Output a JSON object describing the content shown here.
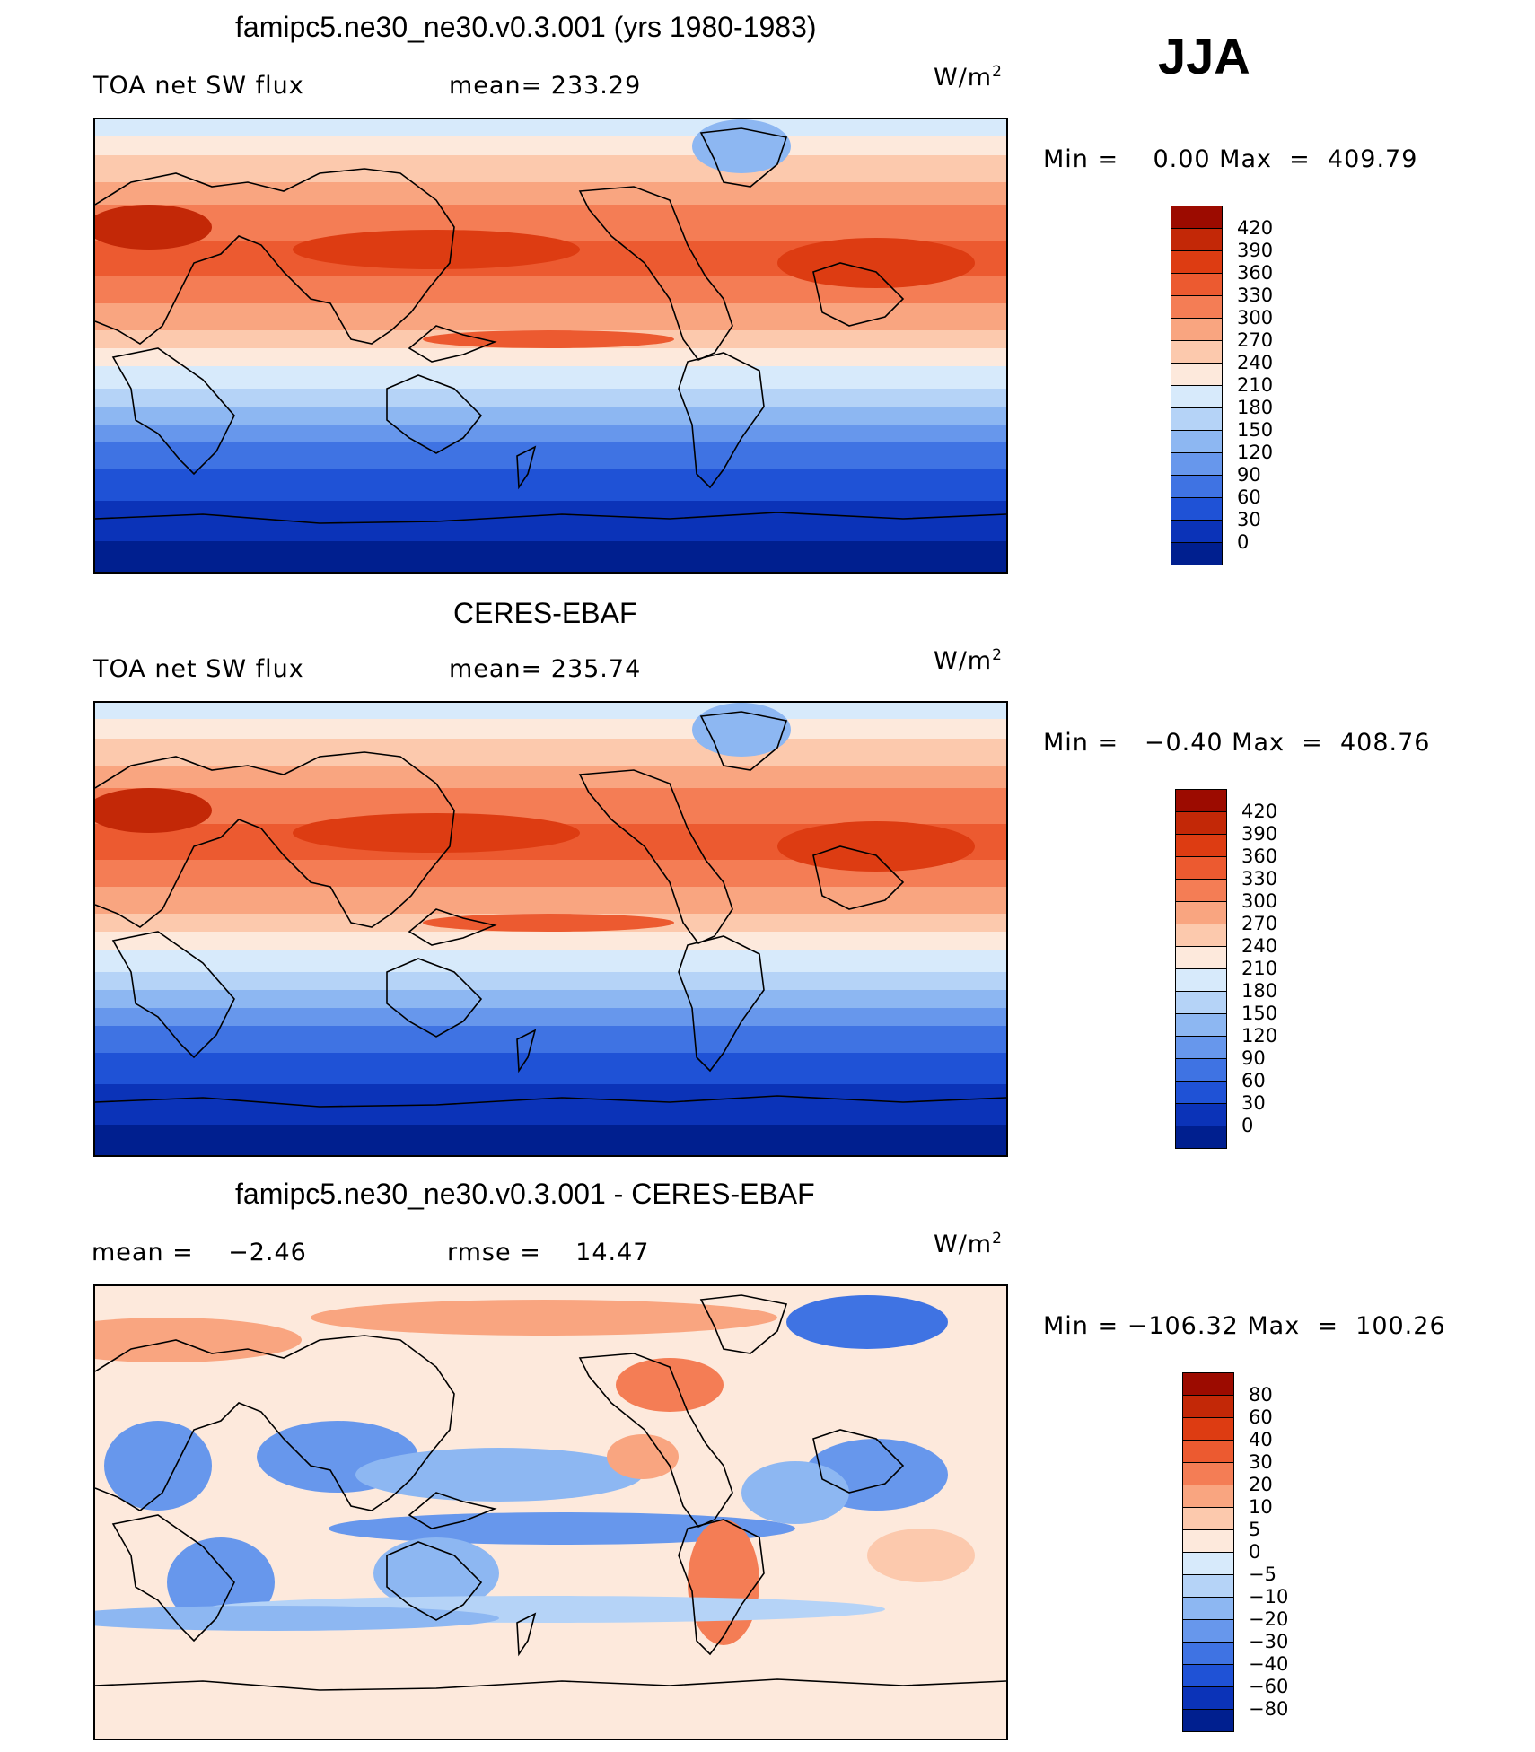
{
  "season": "JJA",
  "colors": {
    "warm": [
      "#fde9dc",
      "#fcc9ad",
      "#f9a580",
      "#f47d55",
      "#ec5a30",
      "#dd3c12",
      "#c32807",
      "#9c0b00"
    ],
    "cool": [
      "#d7eafb",
      "#b5d3f7",
      "#8db7f2",
      "#6797ec",
      "#3f73e3",
      "#1f52d6",
      "#0b33b8",
      "#001f8f"
    ],
    "coast": "#000000"
  },
  "panels": [
    {
      "title": "famipc5.ne30_ne30.v0.3.001 (yrs 1980-1983)",
      "left_label": "TOA net SW flux",
      "mid_label": "mean= 233.29",
      "unit_base": "W/m",
      "unit_exp": "2",
      "minmax": "Min =    0.00 Max  =  409.79",
      "colorbar": {
        "kind": "absolute",
        "labels": [
          "420",
          "390",
          "360",
          "330",
          "300",
          "270",
          "240",
          "210",
          "180",
          "150",
          "120",
          "90",
          "60",
          "30",
          "0"
        ]
      }
    },
    {
      "title": "CERES-EBAF",
      "left_label": "TOA net SW flux",
      "mid_label": "mean= 235.74",
      "unit_base": "W/m",
      "unit_exp": "2",
      "minmax": "Min =   −0.40 Max  =  408.76",
      "colorbar": {
        "kind": "absolute",
        "labels": [
          "420",
          "390",
          "360",
          "330",
          "300",
          "270",
          "240",
          "210",
          "180",
          "150",
          "120",
          "90",
          "60",
          "30",
          "0"
        ]
      }
    },
    {
      "title": "famipc5.ne30_ne30.v0.3.001 - CERES-EBAF",
      "left_label": "mean =    −2.46",
      "mid_label": "rmse =    14.47",
      "unit_base": "W/m",
      "unit_exp": "2",
      "minmax": "Min = −106.32 Max  =  100.26",
      "colorbar": {
        "kind": "difference",
        "labels": [
          "80",
          "60",
          "40",
          "30",
          "20",
          "10",
          "5",
          "0",
          "−5",
          "−10",
          "−20",
          "−30",
          "−40",
          "−60",
          "−80"
        ]
      }
    }
  ]
}
